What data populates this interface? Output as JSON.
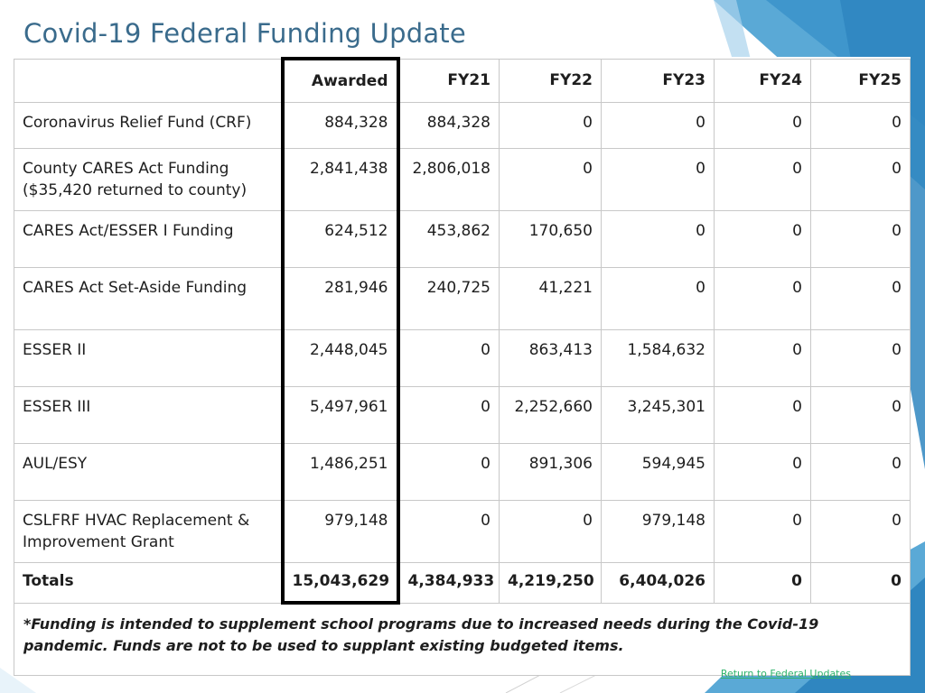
{
  "slide": {
    "title": "Covid-19 Federal Funding Update",
    "accent_color": "#3a6b8c",
    "footer_link": "Return to Federal Updates"
  },
  "table": {
    "headers": [
      "",
      "Awarded",
      "FY21",
      "FY22",
      "FY23",
      "FY24",
      "FY25"
    ],
    "rows": [
      {
        "label": "Coronavirus Relief Fund (CRF)",
        "values": [
          "884,328",
          "884,328",
          "0",
          "0",
          "0",
          "0"
        ]
      },
      {
        "label": "County CARES Act Funding ($35,420 returned to county)",
        "values": [
          "2,841,438",
          "2,806,018",
          "0",
          "0",
          "0",
          "0"
        ]
      },
      {
        "label": "CARES Act/ESSER I Funding",
        "values": [
          "624,512",
          "453,862",
          "170,650",
          "0",
          "0",
          "0"
        ]
      },
      {
        "label": "CARES Act Set-Aside Funding",
        "values": [
          "281,946",
          "240,725",
          "41,221",
          "0",
          "0",
          "0"
        ]
      },
      {
        "label": "ESSER II",
        "values": [
          "2,448,045",
          "0",
          "863,413",
          "1,584,632",
          "0",
          "0"
        ]
      },
      {
        "label": "ESSER III",
        "values": [
          "5,497,961",
          "0",
          "2,252,660",
          "3,245,301",
          "0",
          "0"
        ]
      },
      {
        "label": "AUL/ESY",
        "values": [
          "1,486,251",
          "0",
          "891,306",
          "594,945",
          "0",
          "0"
        ]
      },
      {
        "label": "CSLFRF HVAC Replacement & Improvement Grant",
        "values": [
          "979,148",
          "0",
          "0",
          "979,148",
          "0",
          "0"
        ]
      }
    ],
    "totals": {
      "label": "Totals",
      "values": [
        "15,043,629",
        "4,384,933",
        "4,219,250",
        "6,404,026",
        "0",
        "0"
      ]
    },
    "note": "*Funding is intended to supplement school programs due to increased needs during the Covid-19 pandemic.  Funds are not to be used to supplant existing budgeted items."
  }
}
